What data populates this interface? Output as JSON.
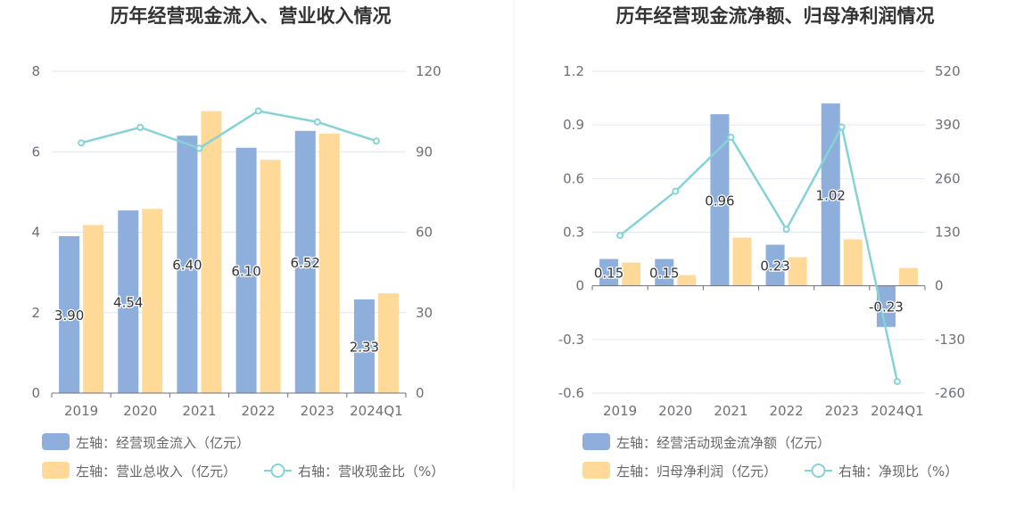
{
  "chart_data": [
    {
      "type": "bar",
      "title": "历年经营现金流入、营业收入情况",
      "categories": [
        "2019",
        "2020",
        "2021",
        "2022",
        "2023",
        "2024Q1"
      ],
      "left_axis": {
        "min": 0,
        "max": 8,
        "ticks": [
          "0",
          "2",
          "4",
          "6",
          "8"
        ]
      },
      "right_axis": {
        "min": 0,
        "max": 120,
        "ticks": [
          "0",
          "30",
          "60",
          "90",
          "120"
        ]
      },
      "series": [
        {
          "name": "左轴：经营现金流入（亿元）",
          "type": "bar",
          "axis": "left",
          "color": "#8eaedc",
          "values": [
            3.9,
            4.54,
            6.4,
            6.1,
            6.52,
            2.33
          ],
          "labels": [
            "3.90",
            "4.54",
            "6.40",
            "6.10",
            "6.52",
            "2.33"
          ]
        },
        {
          "name": "左轴：营业总收入（亿元）",
          "type": "bar",
          "axis": "left",
          "color": "#ffd998",
          "values": [
            4.18,
            4.58,
            7.01,
            5.8,
            6.45,
            2.48
          ]
        },
        {
          "name": "右轴：营收现金比（%）",
          "type": "line",
          "axis": "right",
          "color": "#86d3d6",
          "values": [
            93.3,
            99.1,
            91.3,
            105.2,
            101.1,
            94.0
          ]
        }
      ]
    },
    {
      "type": "bar",
      "title": "历年经营现金流净额、归母净利润情况",
      "categories": [
        "2019",
        "2020",
        "2021",
        "2022",
        "2023",
        "2024Q1"
      ],
      "left_axis": {
        "min": -0.6,
        "max": 1.2,
        "ticks": [
          "-0.6",
          "-0.3",
          "0",
          "0.3",
          "0.6",
          "0.9",
          "1.2"
        ]
      },
      "right_axis": {
        "min": -260,
        "max": 520,
        "ticks": [
          "-260",
          "-130",
          "0",
          "130",
          "260",
          "390",
          "520"
        ]
      },
      "series": [
        {
          "name": "左轴：经营活动现金流净额（亿元）",
          "type": "bar",
          "axis": "left",
          "color": "#8eaedc",
          "values": [
            0.15,
            0.15,
            0.96,
            0.23,
            1.02,
            -0.23
          ],
          "labels": [
            "0.15",
            "0.15",
            "0.96",
            "0.23",
            "1.02",
            "-0.23"
          ]
        },
        {
          "name": "左轴：归母净利润（亿元）",
          "type": "bar",
          "axis": "left",
          "color": "#ffd998",
          "values": [
            0.13,
            0.06,
            0.27,
            0.16,
            0.26,
            0.1
          ]
        },
        {
          "name": "右轴：净现比（%）",
          "type": "line",
          "axis": "right",
          "color": "#86d3d6",
          "values": [
            122,
            229,
            360,
            137,
            385,
            -232
          ]
        }
      ]
    }
  ]
}
